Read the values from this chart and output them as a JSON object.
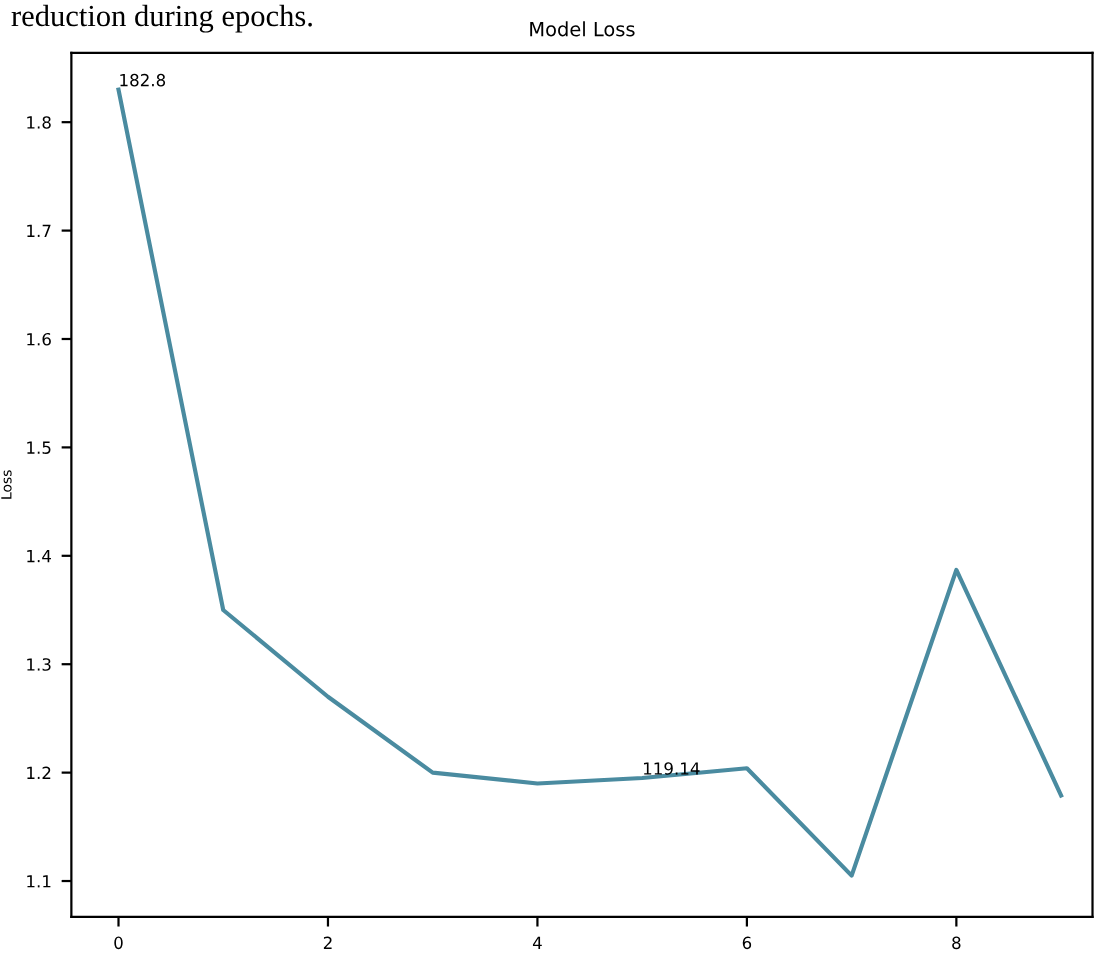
{
  "chart_data": {
    "type": "line",
    "title": "Model Loss",
    "ylabel": "Loss",
    "x": [
      0,
      1,
      2,
      3,
      4,
      5,
      6,
      7,
      8,
      9
    ],
    "series": [
      {
        "color": "#4a8ba0",
        "values": [
          1.83,
          1.35,
          1.27,
          1.2,
          1.19,
          1.195,
          1.204,
          1.105,
          1.387,
          1.179
        ]
      }
    ],
    "xlim": [
      -0.45,
      9.3
    ],
    "ylim": [
      1.067,
      1.864
    ],
    "xticks": [
      0,
      2,
      4,
      6,
      8
    ],
    "yticks": [
      1.1,
      1.2,
      1.3,
      1.4,
      1.5,
      1.6,
      1.7,
      1.8
    ],
    "annotations": [
      "reduction during epochs.",
      {
        "text": "182.8",
        "x": 0,
        "y": 1.83
      },
      {
        "text": "119.14",
        "x": 5,
        "y": 1.195
      }
    ],
    "grid": false,
    "marker": "none",
    "line_style": "solid"
  }
}
